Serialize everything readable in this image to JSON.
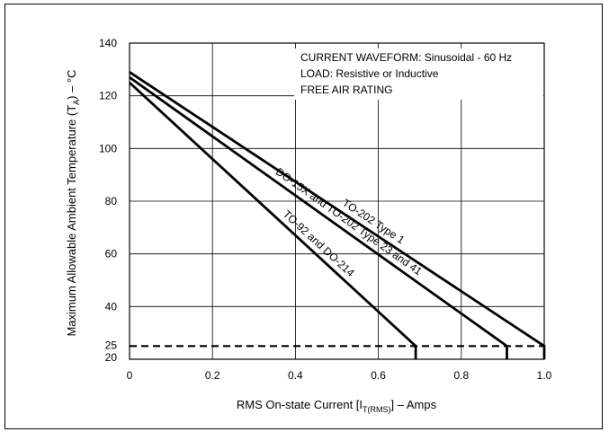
{
  "chart_data": {
    "type": "line",
    "title": "",
    "xlabel_main": "RMS On-state Current [I",
    "xlabel_sub": "T(RMS)",
    "xlabel_tail": "] – Amps",
    "ylabel_main": "Maximum Allowable Ambient Temperature (T",
    "ylabel_sub": "A",
    "ylabel_tail": ") – °C",
    "xlim": [
      0,
      1.0
    ],
    "ylim": [
      20,
      140
    ],
    "x_ticks": [
      0,
      0.2,
      0.4,
      0.6,
      0.8,
      1.0
    ],
    "x_tick_labels": [
      "0",
      "0.2",
      "0.4",
      "0.6",
      "0.8",
      "1.0"
    ],
    "y_ticks": [
      20,
      25,
      40,
      60,
      80,
      100,
      120,
      140
    ],
    "y_tick_labels": [
      "20",
      "25",
      "40",
      "60",
      "80",
      "100",
      "120",
      "140"
    ],
    "grid": true,
    "annotations": [
      "CURRENT WAVEFORM: Sinusoidal - 60 Hz",
      "LOAD: Resistive or Inductive",
      "FREE AIR RATING"
    ],
    "reference_line": {
      "y": 25,
      "style": "dashed"
    },
    "series": [
      {
        "name": "TO-202 Type 1",
        "points": [
          [
            0,
            129
          ],
          [
            1.0,
            25
          ],
          [
            1.0,
            20
          ]
        ]
      },
      {
        "name": "DO-15X and TO-202 Type 23 and 41",
        "points": [
          [
            0,
            127
          ],
          [
            0.91,
            25
          ],
          [
            0.91,
            20
          ]
        ]
      },
      {
        "name": "TO-92 and DO-214",
        "points": [
          [
            0,
            125
          ],
          [
            0.69,
            25
          ],
          [
            0.69,
            20
          ]
        ]
      }
    ]
  }
}
